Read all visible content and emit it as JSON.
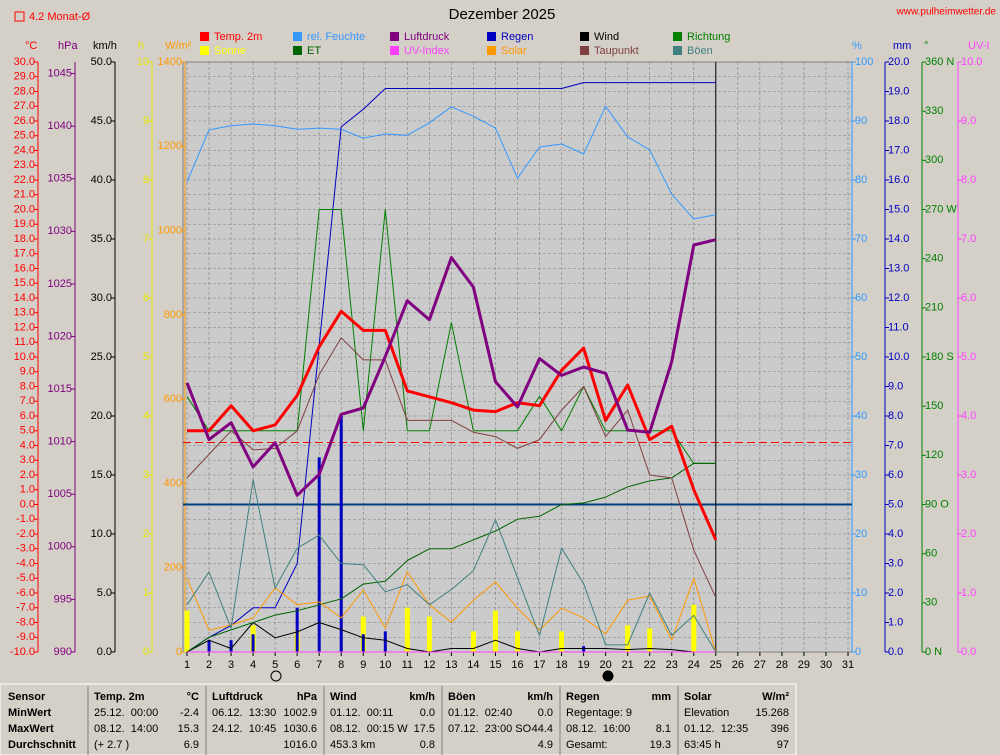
{
  "chart_data": {
    "type": "line",
    "title": "Dezember 2025",
    "site": "www.pulheimwetter.de",
    "mean_line": {
      "value": 4.2,
      "label": "4.2 Monat-Ø",
      "color": "#ff0000"
    },
    "freezing_line": {
      "value": 0,
      "color": "#004080"
    },
    "grid": true,
    "x": [
      1,
      2,
      3,
      4,
      5,
      6,
      7,
      8,
      9,
      10,
      11,
      12,
      13,
      14,
      15,
      16,
      17,
      18,
      19,
      20,
      21,
      22,
      23,
      24,
      25
    ],
    "xlim": [
      1,
      31
    ],
    "xticks": [
      1,
      2,
      3,
      4,
      5,
      6,
      7,
      8,
      9,
      10,
      11,
      12,
      13,
      14,
      15,
      16,
      17,
      18,
      19,
      20,
      21,
      22,
      23,
      24,
      25,
      26,
      27,
      28,
      29,
      30,
      31
    ],
    "axes": {
      "temp": {
        "unit": "°C",
        "color": "#ff0000",
        "lim": [
          -10,
          30
        ],
        "ticks": [
          {
            "value": 30,
            "label": "30.0"
          },
          {
            "value": 29,
            "label": "29.0"
          },
          {
            "value": 28,
            "label": "28.0"
          },
          {
            "value": 27,
            "label": "27.0"
          },
          {
            "value": 26,
            "label": "26.0"
          },
          {
            "value": 25,
            "label": "25.0"
          },
          {
            "value": 24,
            "label": "24.0"
          },
          {
            "value": 23,
            "label": "23.0"
          },
          {
            "value": 22,
            "label": "22.0"
          },
          {
            "value": 21,
            "label": "21.0"
          },
          {
            "value": 20,
            "label": "20.0"
          },
          {
            "value": 19,
            "label": "19.0"
          },
          {
            "value": 18,
            "label": "18.0"
          },
          {
            "value": 17,
            "label": "17.0"
          },
          {
            "value": 16,
            "label": "16.0"
          },
          {
            "value": 15,
            "label": "15.0"
          },
          {
            "value": 14,
            "label": "14.0"
          },
          {
            "value": 13,
            "label": "13.0"
          },
          {
            "value": 12,
            "label": "12.0"
          },
          {
            "value": 11,
            "label": "11.0"
          },
          {
            "value": 10,
            "label": "10.0"
          },
          {
            "value": 9,
            "label": "9.0"
          },
          {
            "value": 8,
            "label": "8.0"
          },
          {
            "value": 7,
            "label": "7.0"
          },
          {
            "value": 6,
            "label": "6.0"
          },
          {
            "value": 5,
            "label": "5.0"
          },
          {
            "value": 4,
            "label": "4.0"
          },
          {
            "value": 3,
            "label": "3.0"
          },
          {
            "value": 2,
            "label": "2.0"
          },
          {
            "value": 1,
            "label": "1.0"
          },
          {
            "value": 0,
            "label": "0.0"
          },
          {
            "value": -1,
            "label": "-1.0"
          },
          {
            "value": -2,
            "label": "-2.0"
          },
          {
            "value": -3,
            "label": "-3.0"
          },
          {
            "value": -4,
            "label": "-4.0"
          },
          {
            "value": -5,
            "label": "-5.0"
          },
          {
            "value": -6,
            "label": "-6.0"
          },
          {
            "value": -7,
            "label": "-7.0"
          },
          {
            "value": -8,
            "label": "-8.0"
          },
          {
            "value": -9,
            "label": "-9.0"
          },
          {
            "value": -10,
            "label": "-10.0"
          }
        ]
      },
      "pressure": {
        "unit": "hPa",
        "color": "#800080",
        "lim": [
          990,
          1046.1
        ],
        "ticks": [
          990,
          995,
          1000,
          1005,
          1010,
          1015,
          1020,
          1025,
          1030,
          1035,
          1040,
          1045
        ]
      },
      "wind": {
        "unit": "km/h",
        "color": "#000000",
        "lim": [
          0,
          50
        ],
        "ticks": [
          {
            "value": 0,
            "label": "0.0"
          },
          {
            "value": 5,
            "label": "5.0"
          },
          {
            "value": 10,
            "label": "10.0"
          },
          {
            "value": 15,
            "label": "15.0"
          },
          {
            "value": 20,
            "label": "20.0"
          },
          {
            "value": 25,
            "label": "25.0"
          },
          {
            "value": 30,
            "label": "30.0"
          },
          {
            "value": 35,
            "label": "35.0"
          },
          {
            "value": 40,
            "label": "40.0"
          },
          {
            "value": 45,
            "label": "45.0"
          },
          {
            "value": 50,
            "label": "50.0"
          }
        ]
      },
      "sun": {
        "unit": "h",
        "color": "#e8e800",
        "lim": [
          0,
          10
        ],
        "ticks": [
          0,
          1,
          2,
          3,
          4,
          5,
          6,
          7,
          8,
          9,
          10
        ]
      },
      "solar": {
        "unit": "W/m²",
        "color": "#ff9900",
        "lim": [
          0,
          1400
        ],
        "ticks": [
          0,
          200,
          400,
          600,
          800,
          1000,
          1200,
          1400
        ]
      },
      "humidity": {
        "unit": "%",
        "color": "#3399ff",
        "lim": [
          0,
          100
        ],
        "ticks": [
          0,
          10,
          20,
          30,
          40,
          50,
          60,
          70,
          80,
          90,
          100
        ]
      },
      "rain": {
        "unit": "mm",
        "color": "#0000c0",
        "lim": [
          0,
          20
        ],
        "ticks": [
          {
            "value": 0,
            "label": "0.0"
          },
          {
            "value": 1,
            "label": "1.0"
          },
          {
            "value": 2,
            "label": "2.0"
          },
          {
            "value": 3,
            "label": "3.0"
          },
          {
            "value": 4,
            "label": "4.0"
          },
          {
            "value": 5,
            "label": "5.0"
          },
          {
            "value": 6,
            "label": "6.0"
          },
          {
            "value": 7,
            "label": "7.0"
          },
          {
            "value": 8,
            "label": "8.0"
          },
          {
            "value": 9,
            "label": "9.0"
          },
          {
            "value": 10,
            "label": "10.0"
          },
          {
            "value": 11,
            "label": "11.0"
          },
          {
            "value": 12,
            "label": "12.0"
          },
          {
            "value": 13,
            "label": "13.0"
          },
          {
            "value": 14,
            "label": "14.0"
          },
          {
            "value": 15,
            "label": "15.0"
          },
          {
            "value": 16,
            "label": "16.0"
          },
          {
            "value": 17,
            "label": "17.0"
          },
          {
            "value": 18,
            "label": "18.0"
          },
          {
            "value": 19,
            "label": "19.0"
          },
          {
            "value": 20,
            "label": "20.0"
          }
        ]
      },
      "direction": {
        "unit": "°",
        "color": "#008000",
        "lim": [
          0,
          360
        ],
        "ticks": [
          {
            "value": 0,
            "label": "0 N"
          },
          30,
          60,
          {
            "value": 90,
            "label": "90 O"
          },
          120,
          150,
          {
            "value": 180,
            "label": "180 S"
          },
          210,
          240,
          {
            "value": 270,
            "label": "270 W"
          },
          300,
          330,
          {
            "value": 360,
            "label": "360 N"
          }
        ]
      },
      "uv": {
        "unit": "UV-I",
        "color": "#ff40ff",
        "lim": [
          0,
          10
        ],
        "ticks": [
          {
            "value": 0,
            "label": "0.0"
          },
          {
            "value": 1,
            "label": "1.0"
          },
          {
            "value": 2,
            "label": "2.0"
          },
          {
            "value": 3,
            "label": "3.0"
          },
          {
            "value": 4,
            "label": "4.0"
          },
          {
            "value": 5,
            "label": "5.0"
          },
          {
            "value": 6,
            "label": "6.0"
          },
          {
            "value": 7,
            "label": "7.0"
          },
          {
            "value": 8,
            "label": "8.0"
          },
          {
            "value": 9,
            "label": "9.0"
          },
          {
            "value": 10,
            "label": "10.0"
          }
        ]
      }
    },
    "series": [
      {
        "name": "Temp. 2m",
        "color": "#ff0000",
        "axis": "temp",
        "width": 3,
        "values": [
          5.0,
          5.0,
          6.7,
          5.0,
          5.4,
          7.4,
          10.7,
          13.1,
          11.8,
          11.8,
          7.7,
          7.3,
          6.9,
          6.4,
          6.3,
          6.9,
          6.7,
          9.1,
          10.6,
          5.7,
          8.1,
          4.4,
          5.3,
          1.0,
          -2.4
        ]
      },
      {
        "name": "rel. Feuchte",
        "color": "#3399ff",
        "axis": "humidity",
        "width": 1,
        "values": [
          79.7,
          88.5,
          89.2,
          89.5,
          89.2,
          88.6,
          88.8,
          88.6,
          87.1,
          87.8,
          87.6,
          89.7,
          92.4,
          90.8,
          88.8,
          80.3,
          85.6,
          86.1,
          84.4,
          92.5,
          87.3,
          85.1,
          77.6,
          73.4,
          74.1
        ]
      },
      {
        "name": "Luftdruck",
        "color": "#800080",
        "axis": "pressure",
        "width": 3,
        "values": [
          1015.6,
          1010.2,
          1011.8,
          1007.6,
          1009.9,
          1004.9,
          1006.9,
          1012.6,
          1013.2,
          1018.1,
          1023.4,
          1021.6,
          1027.5,
          1024.7,
          1015.7,
          1013.3,
          1017.9,
          1016.3,
          1017.1,
          1016.5,
          1011.1,
          1010.9,
          1017.6,
          1028.7,
          1029.2
        ]
      },
      {
        "name": "Regen",
        "color": "#0000c0",
        "axis": "rain",
        "width": 1,
        "values": [
          0,
          0.5,
          0.9,
          1.5,
          1.5,
          3.0,
          10.4,
          17.8,
          18.4,
          19.1,
          19.1,
          19.1,
          19.1,
          19.1,
          19.1,
          19.1,
          19.1,
          19.1,
          19.3,
          19.3,
          19.3,
          19.3,
          19.3,
          19.3,
          19.3
        ],
        "bar_values": [
          0,
          0.4,
          0.4,
          0.6,
          0,
          1.5,
          6.6,
          8.0,
          0.6,
          0.7,
          0,
          0,
          0,
          0,
          0,
          0,
          0,
          0,
          0.2,
          0,
          0,
          0,
          0,
          0,
          0
        ]
      },
      {
        "name": "Wind",
        "color": "#000000",
        "axis": "wind",
        "width": 1,
        "values": [
          0,
          1.0,
          0.3,
          2.5,
          1.2,
          1.7,
          2.5,
          1.9,
          1.2,
          1.0,
          0.3,
          0,
          0.3,
          0.3,
          1.0,
          0.3,
          0,
          0.3,
          0.3,
          0.3,
          0.2,
          0.3,
          0.2,
          0,
          0
        ]
      },
      {
        "name": "Richtung",
        "color": "#008000",
        "axis": "direction",
        "width": 1,
        "values": [
          156,
          135,
          135,
          135,
          135,
          135,
          270,
          270,
          135,
          270,
          135,
          135,
          201,
          135,
          135,
          135,
          156,
          135,
          162,
          135,
          135,
          135,
          135,
          115,
          115
        ]
      },
      {
        "name": "Sonne",
        "color": "#ffff00",
        "axis": "sun",
        "bar": true,
        "values": [
          0.7,
          0,
          0,
          0.45,
          0,
          0.35,
          0,
          0,
          0.6,
          0,
          0.75,
          0.6,
          0,
          0.35,
          0.7,
          0.35,
          0,
          0.35,
          0,
          0,
          0.45,
          0.4,
          0,
          0.8,
          0
        ]
      },
      {
        "name": "ET",
        "color": "#006400",
        "axis": "rain",
        "width": 1,
        "values": [
          0,
          0.5,
          0.75,
          1.0,
          1.25,
          1.4,
          1.6,
          1.8,
          2.3,
          2.4,
          3.1,
          3.5,
          3.5,
          3.8,
          4.1,
          4.5,
          4.6,
          5.0,
          5.05,
          5.25,
          5.6,
          5.8,
          5.9,
          6.4,
          6.4
        ]
      },
      {
        "name": "UV-Index",
        "color": "#ff40ff",
        "axis": "uv",
        "width": 1,
        "values": [
          0,
          0,
          0,
          0,
          0,
          0,
          0,
          0,
          0,
          0,
          0,
          0,
          0,
          0,
          0,
          0,
          0,
          0,
          0,
          0,
          0,
          0,
          0,
          0,
          0
        ]
      },
      {
        "name": "Solar",
        "color": "#ff9900",
        "axis": "solar",
        "width": 1,
        "values": [
          175,
          52,
          64,
          81,
          152,
          112,
          119,
          81,
          147,
          57,
          190,
          112,
          71,
          123,
          166,
          104,
          52,
          104,
          81,
          43,
          123,
          133,
          28,
          175,
          0
        ]
      },
      {
        "name": "Taupunkt",
        "color": "#804040",
        "axis": "temp",
        "width": 1,
        "values": [
          1.8,
          3.4,
          5.0,
          3.7,
          3.8,
          5.0,
          8.8,
          11.3,
          9.8,
          9.8,
          5.7,
          5.7,
          5.7,
          4.9,
          4.6,
          3.8,
          4.4,
          6.4,
          8.0,
          4.6,
          6.4,
          2.0,
          1.8,
          -3.1,
          -6.3
        ]
      },
      {
        "name": "Böen",
        "color": "#408080",
        "axis": "wind",
        "width": 1,
        "values": [
          4.0,
          6.8,
          2.0,
          14.6,
          5.4,
          8.8,
          9.9,
          7.5,
          7.4,
          5.1,
          5.7,
          4.0,
          5.3,
          6.9,
          11.2,
          6.3,
          1.4,
          8.8,
          5.8,
          0.6,
          0.6,
          5.0,
          1.4,
          3.1,
          0
        ]
      }
    ]
  },
  "table": {
    "label_column": [
      "Sensor",
      "MinWert",
      "MaxWert",
      "Durchschnitt"
    ],
    "groups": [
      {
        "title": "Temp. 2m",
        "unit": "°C",
        "rows": [
          {
            "left": "25.12.  00:00",
            "right": "-2.4"
          },
          {
            "left": "08.12.  14:00",
            "right": "15.3"
          },
          {
            "left": "(+ 2.7 )",
            "right": "6.9"
          }
        ]
      },
      {
        "title": "Luftdruck",
        "unit": "hPa",
        "rows": [
          {
            "left": "06.12.  13:30",
            "right": "1002.9"
          },
          {
            "left": "24.12.  10:45",
            "right": "1030.6"
          },
          {
            "right": "1016.0"
          }
        ]
      },
      {
        "title": "Wind",
        "unit": "km/h",
        "rows": [
          {
            "left": "01.12.  00:11",
            "right": "0.0"
          },
          {
            "left": "08.12.  00:15 W",
            "right": "17.5"
          },
          {
            "left": "453.3 km",
            "right": "0.8"
          }
        ]
      },
      {
        "title": "Böen",
        "unit": "km/h",
        "rows": [
          {
            "left": "01.12.  02:40",
            "right": "0.0"
          },
          {
            "left": "07.12.  23:00 SO",
            "right": "44.4"
          },
          {
            "right": "4.9"
          }
        ]
      },
      {
        "title": "Regen",
        "unit": "mm",
        "rows": [
          {
            "left": "Regentage: 9"
          },
          {
            "left": "08.12.  16:00",
            "right": "8.1"
          },
          {
            "left": "Gesamt:",
            "right": "19.3"
          }
        ]
      },
      {
        "title": "Solar",
        "unit": "W/m²",
        "rows": [
          {
            "left": "Elevation",
            "right": "15.268"
          },
          {
            "left": "01.12.  12:35",
            "right": "396"
          },
          {
            "left": "63:45 h",
            "right": "97"
          }
        ]
      }
    ]
  }
}
